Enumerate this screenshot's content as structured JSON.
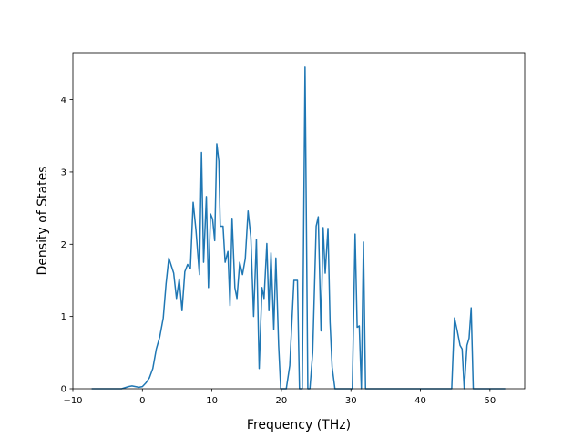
{
  "chart_data": {
    "type": "line",
    "xlabel": "Frequency (THz)",
    "ylabel": "Density of States",
    "xlim": [
      -10,
      55
    ],
    "ylim": [
      0,
      4.65
    ],
    "xticks": [
      -10,
      0,
      10,
      20,
      30,
      40,
      50
    ],
    "yticks": [
      0,
      1,
      2,
      3,
      4
    ],
    "xtick_labels": [
      "−10",
      "0",
      "10",
      "20",
      "30",
      "40",
      "50"
    ],
    "ytick_labels": [
      "0",
      "1",
      "2",
      "3",
      "4"
    ],
    "grid": false,
    "legend": "none",
    "series": [
      {
        "color": "#1f77b4",
        "x": [
          -7.3,
          -3.0,
          -2.0,
          -1.5,
          -1.0,
          -0.5,
          0.0,
          0.5,
          1.0,
          1.5,
          2.0,
          2.5,
          3.0,
          3.4,
          3.8,
          4.5,
          4.9,
          5.3,
          5.7,
          6.1,
          6.5,
          6.9,
          7.3,
          7.7,
          8.2,
          8.5,
          8.8,
          9.2,
          9.5,
          9.8,
          10.1,
          10.4,
          10.7,
          11.0,
          11.2,
          11.6,
          11.9,
          12.3,
          12.6,
          12.9,
          13.3,
          13.6,
          14.0,
          14.4,
          14.8,
          15.2,
          15.6,
          16.0,
          16.4,
          16.8,
          17.2,
          17.5,
          17.9,
          18.2,
          18.5,
          18.9,
          19.2,
          19.6,
          19.9,
          20.3,
          20.7,
          21.2,
          21.8,
          22.3,
          22.6,
          23.0,
          23.4,
          23.8,
          24.1,
          24.5,
          25.0,
          25.3,
          25.7,
          26.0,
          26.3,
          26.7,
          27.0,
          27.3,
          27.7,
          28.2,
          28.6,
          29.5,
          30.2,
          30.6,
          30.9,
          31.2,
          31.5,
          31.8,
          32.1,
          32.4,
          32.8,
          33.5,
          44.5,
          44.9,
          45.3,
          45.7,
          46.0,
          46.3,
          46.7,
          47.0,
          47.3,
          47.6,
          48.0,
          52.2
        ],
        "y": [
          0.0,
          0.0,
          0.03,
          0.04,
          0.03,
          0.02,
          0.03,
          0.08,
          0.15,
          0.28,
          0.55,
          0.72,
          0.98,
          1.45,
          1.81,
          1.6,
          1.25,
          1.52,
          1.08,
          1.62,
          1.72,
          1.66,
          2.58,
          2.2,
          1.58,
          3.27,
          1.75,
          2.66,
          1.4,
          2.42,
          2.35,
          2.05,
          3.39,
          3.15,
          2.25,
          2.25,
          1.75,
          1.9,
          1.15,
          2.36,
          1.4,
          1.25,
          1.75,
          1.58,
          1.8,
          2.46,
          2.1,
          1.0,
          2.07,
          0.28,
          1.4,
          1.25,
          2.01,
          1.08,
          1.88,
          0.82,
          1.81,
          0.6,
          0.0,
          0.0,
          0.0,
          0.32,
          1.5,
          1.5,
          0.0,
          0.0,
          4.45,
          0.0,
          0.0,
          0.5,
          2.25,
          2.38,
          0.8,
          2.23,
          1.6,
          2.22,
          0.92,
          0.3,
          0.0,
          0.0,
          0.0,
          0.0,
          0.0,
          2.14,
          0.85,
          0.87,
          0.0,
          2.03,
          0.0,
          0.0,
          0.0,
          0.0,
          0.0,
          0.98,
          0.8,
          0.6,
          0.55,
          0.0,
          0.6,
          0.7,
          1.12,
          0.0,
          0.0,
          0.0
        ]
      }
    ]
  }
}
